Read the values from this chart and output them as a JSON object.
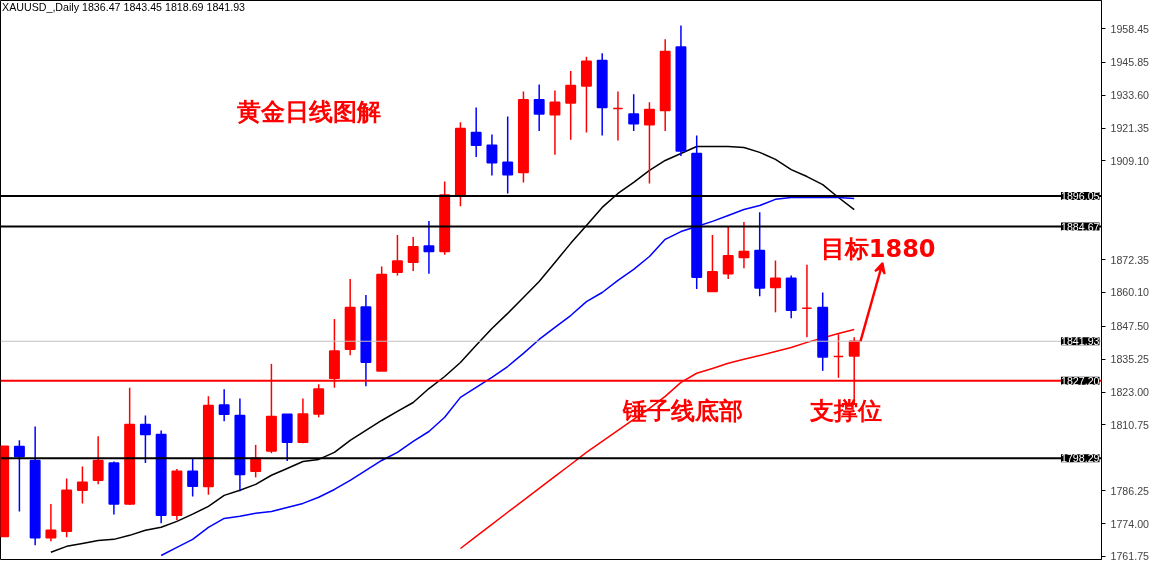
{
  "chart_data": {
    "type": "candlestick",
    "title": "XAUUSD_,Daily  1836.47 1843.45 1818.69 1841.93",
    "categories": [
      null,
      null,
      null,
      null,
      null,
      null,
      null,
      null,
      null,
      null,
      null,
      null,
      null,
      null,
      null,
      null,
      null,
      null,
      null,
      null,
      null,
      null,
      null,
      null,
      null,
      null,
      null,
      null,
      null,
      null,
      null,
      null,
      null,
      null,
      null,
      null,
      null,
      null,
      null,
      null,
      null,
      null,
      null,
      null,
      null,
      null,
      null,
      null,
      null,
      null,
      null,
      null,
      null,
      null,
      null
    ],
    "ohlc": [
      [
        1769.2,
        1802.8,
        1769.2,
        1802.8
      ],
      [
        1802.7,
        1805.0,
        1778.5,
        1799.0
      ],
      [
        1797.5,
        1810.2,
        1765.9,
        1768.7
      ],
      [
        1768.7,
        1781.3,
        1767.4,
        1771.5
      ],
      [
        1771.1,
        1790.8,
        1768.9,
        1786.4
      ],
      [
        1786.4,
        1795.3,
        1781.5,
        1789.4
      ],
      [
        1790.1,
        1806.5,
        1788.6,
        1797.5
      ],
      [
        1796.6,
        1797.1,
        1777.4,
        1781.3
      ],
      [
        1781.3,
        1824.6,
        1780.9,
        1810.9
      ],
      [
        1810.9,
        1814.3,
        1796.6,
        1807.2
      ],
      [
        1807.2,
        1808.7,
        1774.1,
        1777.1
      ],
      [
        1777.1,
        1794.3,
        1775.2,
        1793.5
      ],
      [
        1793.5,
        1798.3,
        1784.1,
        1787.9
      ],
      [
        1787.8,
        1821.4,
        1784.7,
        1818.0
      ],
      [
        1818.2,
        1824.0,
        1812.1,
        1814.7
      ],
      [
        1814.3,
        1820.6,
        1786.0,
        1792.3
      ],
      [
        1793.5,
        1803.3,
        1791.2,
        1798.3
      ],
      [
        1801.0,
        1833.5,
        1800.2,
        1813.9
      ],
      [
        1814.7,
        1814.8,
        1797.3,
        1804.3
      ],
      [
        1804.3,
        1820.6,
        1803.9,
        1814.8
      ],
      [
        1814.8,
        1825.9,
        1813.6,
        1824.1
      ],
      [
        1828.1,
        1850.2,
        1824.6,
        1838.3
      ],
      [
        1838.9,
        1865.1,
        1836.7,
        1854.5
      ],
      [
        1854.7,
        1859.2,
        1825.2,
        1834.1
      ],
      [
        1830.8,
        1869.8,
        1830.8,
        1866.8
      ],
      [
        1867.6,
        1881.5,
        1866.4,
        1871.8
      ],
      [
        1871.4,
        1880.8,
        1868.1,
        1877.1
      ],
      [
        1877.4,
        1886.7,
        1867.1,
        1875.4
      ],
      [
        1875.4,
        1901.5,
        1874.2,
        1896.4
      ],
      [
        1896.0,
        1923.5,
        1892.2,
        1921.2
      ],
      [
        1919.7,
        1929.0,
        1910.6,
        1915.0
      ],
      [
        1915.0,
        1919.0,
        1903.7,
        1908.4
      ],
      [
        1908.6,
        1925.7,
        1897.0,
        1904.0
      ],
      [
        1904.8,
        1935.0,
        1901.1,
        1931.9
      ],
      [
        1931.9,
        1937.6,
        1920.3,
        1926.6
      ],
      [
        1926.3,
        1935.4,
        1911.4,
        1931.0
      ],
      [
        1930.7,
        1942.6,
        1917.0,
        1937.2
      ],
      [
        1937.0,
        1947.9,
        1919.7,
        1946.3
      ],
      [
        1946.5,
        1949.2,
        1918.6,
        1929.0
      ],
      [
        1928.7,
        1935.0,
        1916.7,
        1928.7
      ],
      [
        1926.6,
        1934.0,
        1920.3,
        1923.0
      ],
      [
        1922.6,
        1931.0,
        1900.7,
        1928.3
      ],
      [
        1927.9,
        1954.5,
        1920.3,
        1949.9
      ],
      [
        1951.6,
        1959.6,
        1911.0,
        1912.8
      ],
      [
        1911.9,
        1918.6,
        1861.4,
        1865.8
      ],
      [
        1860.5,
        1881.5,
        1860.5,
        1867.8
      ],
      [
        1867.1,
        1884.8,
        1865.1,
        1873.8
      ],
      [
        1873.1,
        1886.4,
        1869.1,
        1875.4
      ],
      [
        1875.7,
        1890.0,
        1858.7,
        1861.8
      ],
      [
        1862.0,
        1872.0,
        1852.7,
        1865.4
      ],
      [
        1865.4,
        1866.4,
        1850.5,
        1853.5
      ],
      [
        1854.2,
        1870.4,
        1843.4,
        1854.2
      ],
      [
        1854.5,
        1860.1,
        1830.9,
        1836.1
      ],
      [
        1836.2,
        1844.5,
        1828.3,
        1836.2
      ],
      [
        1836.47,
        1843.45,
        1818.69,
        1841.93
      ]
    ],
    "colors": [
      "#ff0000",
      "#0000ff",
      "#0000ff",
      "#ff0000",
      "#ff0000",
      "#ff0000",
      "#ff0000",
      "#0000ff",
      "#ff0000",
      "#0000ff",
      "#0000ff",
      "#ff0000",
      "#0000ff",
      "#ff0000",
      "#0000ff",
      "#0000ff",
      "#ff0000",
      "#ff0000",
      "#0000ff",
      "#ff0000",
      "#ff0000",
      "#ff0000",
      "#ff0000",
      "#0000ff",
      "#ff0000",
      "#ff0000",
      "#ff0000",
      "#0000ff",
      "#ff0000",
      "#ff0000",
      "#0000ff",
      "#0000ff",
      "#0000ff",
      "#ff0000",
      "#0000ff",
      "#ff0000",
      "#ff0000",
      "#ff0000",
      "#0000ff",
      "#ff0000",
      "#0000ff",
      "#ff0000",
      "#ff0000",
      "#0000ff",
      "#0000ff",
      "#ff0000",
      "#ff0000",
      "#ff0000",
      "#0000ff",
      "#ff0000",
      "#0000ff",
      "#ff0000",
      "#0000ff",
      "#ff0000",
      "#ff0000"
    ],
    "series": [
      {
        "type": "line",
        "color": "#000000",
        "values": [
          null,
          null,
          null,
          1763.3,
          1765.5,
          1766.6,
          1767.7,
          1768.1,
          1769.6,
          1771.5,
          1772.6,
          1774.8,
          1777.5,
          1780.4,
          1784.5,
          1786.4,
          1788.6,
          1792.0,
          1794.5,
          1797.1,
          1797.9,
          1800.5,
          1805.0,
          1808.7,
          1812.4,
          1815.8,
          1819.1,
          1824.3,
          1828.8,
          1834.0,
          1840.4,
          1846.7,
          1852.3,
          1858.2,
          1864.2,
          1871.3,
          1878.4,
          1885.1,
          1891.8,
          1897.0,
          1901.1,
          1905.6,
          1909.3,
          null,
          1914.5,
          1914.5,
          1914.5,
          1914.1,
          1912.3,
          1909.7,
          1905.9,
          1903.3,
          1900.3,
          1895.5,
          1891.0
        ]
      },
      {
        "type": "line",
        "color": "#0000ff",
        "values": [
          null,
          null,
          null,
          null,
          null,
          null,
          null,
          null,
          null,
          null,
          1762.1,
          1765.1,
          1768.1,
          1772.6,
          1775.9,
          1776.7,
          1777.8,
          1778.5,
          1780.0,
          1781.5,
          1783.8,
          1786.7,
          1790.1,
          1793.8,
          1797.5,
          1800.5,
          1804.6,
          1808.3,
          1813.6,
          1821.0,
          1824.7,
          1828.5,
          1832.5,
          1837.4,
          1842.6,
          1847.1,
          1851.5,
          1856.7,
          1860.1,
          1864.6,
          1868.7,
          1873.5,
          1879.9,
          1882.8,
          1884.7,
          1886.6,
          1888.8,
          1891.0,
          1892.5,
          1894.8,
          1895.5,
          null,
          null,
          1895.5,
          1895.1
        ]
      },
      {
        "type": "line",
        "color": "#ff0000",
        "values": [
          null,
          null,
          null,
          null,
          null,
          null,
          null,
          null,
          null,
          null,
          null,
          null,
          null,
          null,
          null,
          null,
          null,
          null,
          null,
          null,
          null,
          null,
          null,
          null,
          null,
          null,
          null,
          null,
          null,
          1764.7,
          1769.2,
          1773.7,
          1778.2,
          1782.6,
          1787.1,
          1791.6,
          1796.0,
          1800.5,
          1804.6,
          1808.7,
          1812.8,
          1816.9,
          1821.4,
          1826.6,
          1830.0,
          1831.8,
          1833.7,
          1835.2,
          1836.6,
          1838.1,
          1839.6,
          1841.5,
          null,
          1844.8,
          1846.3
        ]
      }
    ],
    "ylim": [
      1760.6,
      1968.9
    ],
    "yticks": [
      {
        "value": 1958.45,
        "label": "1958.45"
      },
      {
        "value": 1945.85,
        "label": "1945.85"
      },
      {
        "value": 1933.6,
        "label": "1933.60"
      },
      {
        "value": 1921.35,
        "label": "1921.35"
      },
      {
        "value": 1909.1,
        "label": "1909.10"
      },
      {
        "value": 1872.35,
        "label": "1872.35"
      },
      {
        "value": 1860.1,
        "label": "1860.10"
      },
      {
        "value": 1847.5,
        "label": "1847.50"
      },
      {
        "value": 1835.25,
        "label": "1835.25"
      },
      {
        "value": 1823.0,
        "label": "1823.00"
      },
      {
        "value": 1810.75,
        "label": "1810.75"
      },
      {
        "value": 1786.25,
        "label": "1786.25"
      },
      {
        "value": 1774.0,
        "label": "1774.00"
      },
      {
        "value": 1761.75,
        "label": "1761.75"
      }
    ],
    "ref_lines": [
      {
        "axis": "y",
        "value": 1896.05,
        "label": "1896.05",
        "color": "#000000"
      },
      {
        "axis": "y",
        "value": 1884.67,
        "label": "1884.67",
        "color": "#000000"
      },
      {
        "axis": "y",
        "value": 1827.2,
        "label": "1827.20",
        "color": "#ff0000"
      },
      {
        "axis": "y",
        "value": 1798.29,
        "label": "1798.29",
        "color": "#000000"
      },
      {
        "axis": "y",
        "value": 1841.93,
        "label": "1841.93",
        "color": "#c0c0c0"
      }
    ],
    "annotations": [
      "黄金日线图解",
      "目标1880",
      "锤子线底部",
      "支撑位"
    ],
    "tick_labels": "y",
    "grid": false
  }
}
